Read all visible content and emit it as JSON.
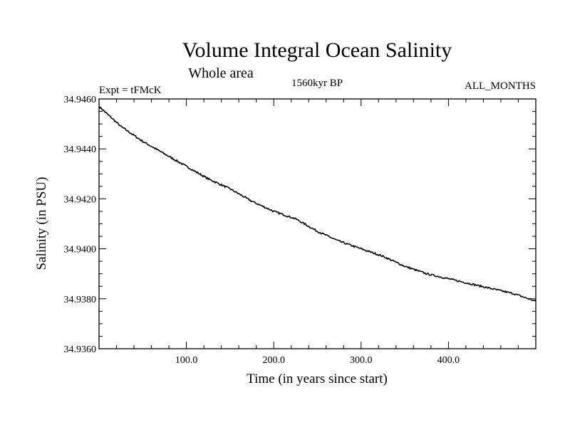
{
  "chart_data": {
    "type": "line",
    "title": "Volume Integral Ocean Salinity",
    "subtitle": "Whole area",
    "left_label": "Expt = tFMcK",
    "center_label": "1560kyr BP",
    "right_label": "ALL_MONTHS",
    "xlabel": "Time (in years since start)",
    "ylabel": "Salinity (in PSU)",
    "xlim": [
      0,
      500
    ],
    "ylim": [
      34.936,
      34.946
    ],
    "x_ticks": [
      100,
      200,
      300,
      400
    ],
    "x_tick_labels": [
      "100.0",
      "200.0",
      "300.0",
      "400.0"
    ],
    "y_ticks": [
      34.936,
      34.938,
      34.94,
      34.942,
      34.944,
      34.946
    ],
    "y_tick_labels": [
      "34.9360",
      "34.9380",
      "34.9400",
      "34.9420",
      "34.9440",
      "34.9460"
    ],
    "grid": false,
    "series": [
      {
        "name": "Salinity",
        "x": [
          0,
          25,
          50,
          75,
          100,
          125,
          150,
          175,
          200,
          225,
          250,
          275,
          300,
          325,
          350,
          375,
          400,
          425,
          450,
          475,
          500
        ],
        "y": [
          34.9457,
          34.9449,
          34.9443,
          34.9438,
          34.9433,
          34.9428,
          34.9424,
          34.9419,
          34.9415,
          34.9412,
          34.9407,
          34.9403,
          34.94,
          34.9397,
          34.9393,
          34.939,
          34.9388,
          34.9386,
          34.9384,
          34.9382,
          34.9379
        ]
      }
    ]
  }
}
